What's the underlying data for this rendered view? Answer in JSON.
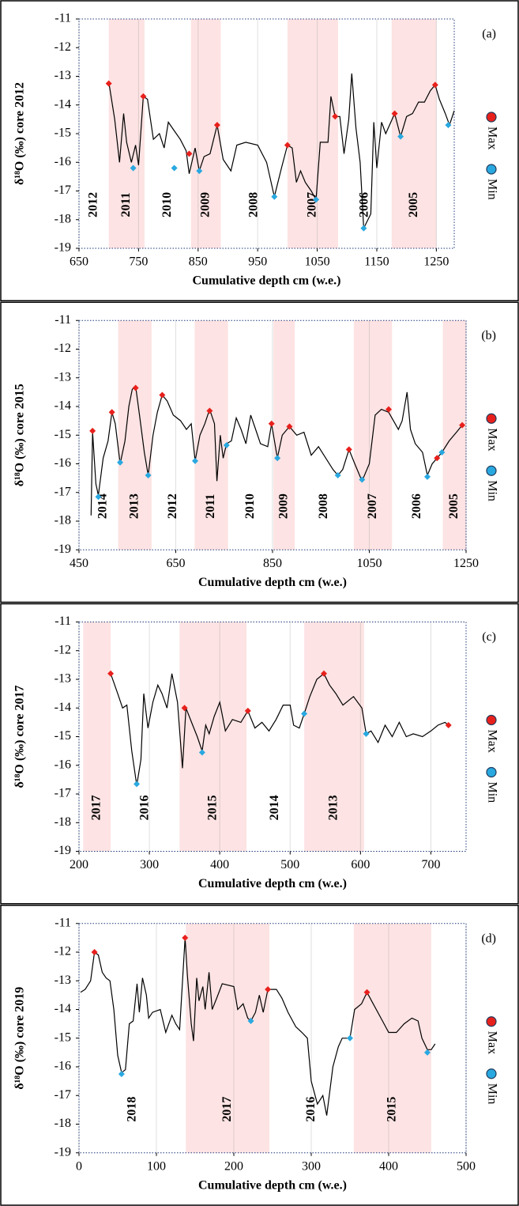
{
  "chart_data": [
    {
      "type": "line",
      "panel_label": "(a)",
      "ylabel": "δ¹⁸O (‰) core 2012",
      "xlabel": "Cumulative depth cm (w.e.)",
      "xlim": [
        650,
        1280
      ],
      "xticks": [
        650,
        750,
        850,
        950,
        1050,
        1150,
        1250
      ],
      "ylim": [
        -19,
        -11
      ],
      "yticks": [
        -19,
        -18,
        -17,
        -16,
        -15,
        -14,
        -13,
        -12,
        -11
      ],
      "x_grid": true,
      "spans": [
        {
          "label": "2012",
          "start": 650,
          "end": 700,
          "shaded": false
        },
        {
          "label": "2011",
          "start": 700,
          "end": 760,
          "shaded": true
        },
        {
          "label": "2010",
          "start": 760,
          "end": 838,
          "shaded": false
        },
        {
          "label": "2009",
          "start": 838,
          "end": 888,
          "shaded": true
        },
        {
          "label": "2008",
          "start": 888,
          "end": 1000,
          "shaded": false
        },
        {
          "label": "2007",
          "start": 1000,
          "end": 1085,
          "shaded": true
        },
        {
          "label": "2006",
          "start": 1085,
          "end": 1175,
          "shaded": false
        },
        {
          "label": "2005",
          "start": 1175,
          "end": 1250,
          "shaded": true
        }
      ],
      "series": [
        {
          "color": "#000000",
          "x": [
            700,
            710,
            718,
            725,
            730,
            738,
            745,
            750,
            758,
            765,
            775,
            785,
            793,
            800,
            810,
            820,
            830,
            835,
            845,
            852,
            860,
            870,
            882,
            892,
            905,
            915,
            930,
            950,
            965,
            978,
            990,
            1000,
            1008,
            1015,
            1022,
            1030,
            1040,
            1048,
            1055,
            1068,
            1073,
            1080,
            1088,
            1095,
            1103,
            1108,
            1115,
            1122,
            1128,
            1140,
            1145,
            1150,
            1158,
            1165,
            1180,
            1190,
            1200,
            1210,
            1220,
            1230,
            1240,
            1248,
            1255,
            1265,
            1272,
            1280
          ],
          "values": [
            -13.2,
            -14.5,
            -16.0,
            -14.3,
            -15.3,
            -16.0,
            -15.4,
            -16.1,
            -13.7,
            -13.8,
            -15.2,
            -15.0,
            -15.5,
            -14.6,
            -14.9,
            -15.2,
            -15.6,
            -16.4,
            -15.5,
            -16.3,
            -15.8,
            -15.7,
            -14.7,
            -15.9,
            -16.3,
            -15.4,
            -15.3,
            -15.4,
            -16.0,
            -17.2,
            -16.2,
            -15.4,
            -15.5,
            -16.7,
            -16.3,
            -16.7,
            -17.0,
            -17.3,
            -15.3,
            -15.3,
            -13.7,
            -14.4,
            -14.4,
            -15.7,
            -14.5,
            -12.9,
            -14.8,
            -16.0,
            -18.3,
            -17.8,
            -14.6,
            -16.2,
            -14.6,
            -15.0,
            -14.3,
            -15.1,
            -14.4,
            -14.3,
            -13.9,
            -13.9,
            -13.5,
            -13.3,
            -13.8,
            -14.3,
            -14.7,
            -14.2
          ]
        },
        {
          "name": "Max",
          "color": "#e8201c",
          "x": [
            700,
            758,
            835,
            882,
            1000,
            1080,
            1180,
            1248
          ],
          "values": [
            -13.25,
            -13.7,
            -15.7,
            -14.7,
            -15.4,
            -14.4,
            -14.3,
            -13.3
          ]
        },
        {
          "name": "Min",
          "color": "#29a8e0",
          "x": [
            741,
            810,
            852,
            978,
            1048,
            1128,
            1190,
            1270
          ],
          "values": [
            -16.2,
            -16.2,
            -16.3,
            -17.2,
            -17.3,
            -18.3,
            -15.1,
            -14.7
          ]
        }
      ]
    },
    {
      "type": "line",
      "panel_label": "(b)",
      "ylabel": "δ¹⁸O (‰) core 2015",
      "xlabel": "Cumulative depth cm (w.e.)",
      "xlim": [
        450,
        1250
      ],
      "xticks": [
        450,
        650,
        850,
        1050,
        1250
      ],
      "ylim": [
        -19,
        -11
      ],
      "yticks": [
        -19,
        -18,
        -17,
        -16,
        -15,
        -14,
        -13,
        -12,
        -11
      ],
      "x_grid": true,
      "spans": [
        {
          "label": "2014",
          "start": 470,
          "end": 531,
          "shaded": false
        },
        {
          "label": "2013",
          "start": 531,
          "end": 600,
          "shaded": true
        },
        {
          "label": "2012",
          "start": 600,
          "end": 689,
          "shaded": false
        },
        {
          "label": "2011",
          "start": 689,
          "end": 758,
          "shaded": true
        },
        {
          "label": "2010",
          "start": 758,
          "end": 852,
          "shaded": false
        },
        {
          "label": "2009",
          "start": 852,
          "end": 896,
          "shaded": true
        },
        {
          "label": "2008",
          "start": 896,
          "end": 1018,
          "shaded": false
        },
        {
          "label": "2007",
          "start": 1018,
          "end": 1097,
          "shaded": true
        },
        {
          "label": "2006",
          "start": 1097,
          "end": 1202,
          "shaded": false
        },
        {
          "label": "2005",
          "start": 1202,
          "end": 1250,
          "shaded": true
        }
      ],
      "series": [
        {
          "color": "#000000",
          "x": [
            475,
            478,
            485,
            490,
            500,
            510,
            518,
            525,
            535,
            545,
            553,
            560,
            567,
            575,
            585,
            593,
            603,
            612,
            622,
            632,
            645,
            660,
            672,
            682,
            690,
            700,
            710,
            720,
            730,
            735,
            742,
            748,
            755,
            765,
            775,
            785,
            795,
            805,
            815,
            825,
            840,
            848,
            860,
            870,
            885,
            900,
            915,
            930,
            945,
            960,
            975,
            985,
            995,
            1008,
            1020,
            1035,
            1050,
            1062,
            1075,
            1090,
            1100,
            1110,
            1118,
            1128,
            1135,
            1145,
            1160,
            1170,
            1180,
            1190,
            1200,
            1215,
            1230,
            1242
          ],
          "values": [
            -17.8,
            -14.9,
            -16.7,
            -17.1,
            -15.8,
            -15.2,
            -14.2,
            -14.6,
            -16.0,
            -15.2,
            -14.0,
            -13.4,
            -13.3,
            -14.3,
            -15.6,
            -16.4,
            -15.0,
            -14.2,
            -13.6,
            -13.8,
            -14.3,
            -14.5,
            -14.8,
            -14.6,
            -15.9,
            -15.0,
            -14.6,
            -14.1,
            -14.6,
            -16.6,
            -15.0,
            -15.8,
            -15.3,
            -15.2,
            -14.4,
            -14.8,
            -15.3,
            -14.3,
            -14.8,
            -15.3,
            -15.4,
            -14.6,
            -15.8,
            -15.0,
            -14.7,
            -15.0,
            -14.9,
            -15.7,
            -15.4,
            -15.8,
            -16.2,
            -16.4,
            -16.2,
            -15.5,
            -16.0,
            -16.6,
            -16.0,
            -14.3,
            -14.1,
            -14.2,
            -14.5,
            -14.8,
            -14.5,
            -13.5,
            -14.8,
            -15.3,
            -15.6,
            -16.4,
            -16.0,
            -15.8,
            -15.6,
            -15.2,
            -14.9,
            -14.65
          ]
        },
        {
          "name": "Max",
          "color": "#e8201c",
          "x": [
            478,
            518,
            567,
            622,
            720,
            848,
            885,
            1008,
            1090,
            1190,
            1242
          ],
          "values": [
            -14.85,
            -14.2,
            -13.35,
            -13.6,
            -14.15,
            -14.6,
            -14.7,
            -15.5,
            -14.1,
            -15.8,
            -14.65
          ]
        },
        {
          "name": "Min",
          "color": "#29a8e0",
          "x": [
            490,
            535,
            593,
            690,
            755,
            860,
            985,
            1035,
            1170,
            1200
          ],
          "values": [
            -17.15,
            -15.95,
            -16.4,
            -15.9,
            -15.35,
            -15.8,
            -16.4,
            -16.55,
            -16.45,
            -15.6
          ]
        }
      ]
    },
    {
      "type": "line",
      "panel_label": "(c)",
      "ylabel": "δ¹⁸O (‰) core 2017",
      "xlabel": "Cumulative depth cm (w.e.)",
      "xlim": [
        200,
        750
      ],
      "xticks": [
        200,
        300,
        400,
        500,
        600,
        700
      ],
      "ylim": [
        -19,
        -11
      ],
      "yticks": [
        -19,
        -18,
        -17,
        -16,
        -15,
        -14,
        -13,
        -12,
        -11
      ],
      "x_grid": true,
      "spans": [
        {
          "label": "2017",
          "start": 206,
          "end": 245,
          "shaded": true
        },
        {
          "label": "2016",
          "start": 245,
          "end": 343,
          "shaded": false
        },
        {
          "label": "2015",
          "start": 343,
          "end": 438,
          "shaded": true
        },
        {
          "label": "2014",
          "start": 438,
          "end": 520,
          "shaded": false
        },
        {
          "label": "2013",
          "start": 520,
          "end": 605,
          "shaded": true
        }
      ],
      "series": [
        {
          "color": "#000000",
          "x": [
            245,
            255,
            262,
            268,
            275,
            282,
            288,
            292,
            298,
            305,
            312,
            318,
            325,
            332,
            340,
            347,
            352,
            360,
            368,
            375,
            380,
            385,
            392,
            400,
            408,
            418,
            430,
            440,
            450,
            460,
            470,
            480,
            490,
            500,
            505,
            513,
            520,
            528,
            538,
            548,
            556,
            565,
            575,
            590,
            602,
            608,
            615,
            625,
            635,
            645,
            655,
            665,
            675,
            688,
            700,
            710,
            720,
            725
          ],
          "values": [
            -12.8,
            -13.5,
            -14.0,
            -13.9,
            -15.5,
            -16.7,
            -15.8,
            -13.5,
            -14.7,
            -13.8,
            -13.2,
            -13.5,
            -14.0,
            -12.8,
            -13.8,
            -16.1,
            -14.0,
            -14.5,
            -15.0,
            -15.5,
            -14.6,
            -14.9,
            -14.3,
            -13.8,
            -14.8,
            -14.4,
            -14.5,
            -14.1,
            -14.7,
            -14.5,
            -14.8,
            -14.4,
            -13.9,
            -13.9,
            -14.6,
            -14.7,
            -14.2,
            -13.6,
            -13.0,
            -12.8,
            -13.2,
            -13.5,
            -13.9,
            -13.6,
            -14.0,
            -14.9,
            -14.8,
            -15.2,
            -14.6,
            -15.0,
            -14.5,
            -15.0,
            -14.9,
            -15.0,
            -14.8,
            -14.6,
            -14.5,
            -14.6
          ]
        },
        {
          "name": "Max",
          "color": "#e8201c",
          "x": [
            245,
            350,
            440,
            548,
            725
          ],
          "values": [
            -12.8,
            -14.0,
            -14.1,
            -12.8,
            -14.6
          ]
        },
        {
          "name": "Min",
          "color": "#29a8e0",
          "x": [
            282,
            375,
            520,
            608
          ],
          "values": [
            -16.65,
            -15.55,
            -14.2,
            -14.9
          ]
        }
      ]
    },
    {
      "type": "line",
      "panel_label": "(d)",
      "ylabel": "δ¹⁸O (‰) core 2019",
      "xlabel": "Cumulative depth cm (w.e.)",
      "xlim": [
        0,
        500
      ],
      "xticks": [
        0,
        100,
        200,
        300,
        400,
        500
      ],
      "ylim": [
        -19,
        -11
      ],
      "yticks": [
        -19,
        -18,
        -17,
        -16,
        -15,
        -14,
        -13,
        -12,
        -11
      ],
      "x_grid": true,
      "spans": [
        {
          "label": "2018",
          "start": 0,
          "end": 138,
          "shaded": false
        },
        {
          "label": "2017",
          "start": 138,
          "end": 246,
          "shaded": true
        },
        {
          "label": "2016",
          "start": 246,
          "end": 355,
          "shaded": false
        },
        {
          "label": "2015",
          "start": 355,
          "end": 455,
          "shaded": true
        }
      ],
      "series": [
        {
          "color": "#000000",
          "x": [
            2,
            8,
            15,
            20,
            25,
            30,
            35,
            40,
            45,
            50,
            55,
            60,
            65,
            70,
            75,
            78,
            82,
            87,
            90,
            95,
            105,
            112,
            120,
            125,
            130,
            137,
            140,
            145,
            148,
            152,
            155,
            160,
            163,
            168,
            172,
            178,
            185,
            200,
            205,
            212,
            218,
            222,
            228,
            233,
            238,
            244,
            255,
            262,
            270,
            280,
            288,
            295,
            300,
            308,
            315,
            320,
            328,
            335,
            340,
            350,
            356,
            365,
            372,
            380,
            392,
            400,
            410,
            420,
            430,
            438,
            443,
            450,
            455,
            460
          ],
          "values": [
            -13.4,
            -13.3,
            -13.0,
            -12.0,
            -12.1,
            -12.7,
            -12.9,
            -13.0,
            -14.0,
            -15.6,
            -16.2,
            -16.1,
            -14.5,
            -14.4,
            -13.1,
            -14.1,
            -12.9,
            -13.5,
            -14.3,
            -14.1,
            -14.0,
            -14.8,
            -14.2,
            -14.5,
            -14.7,
            -11.5,
            -12.8,
            -14.5,
            -15.1,
            -12.9,
            -13.7,
            -13.2,
            -14.0,
            -12.7,
            -14.0,
            -13.6,
            -13.1,
            -13.2,
            -14.0,
            -13.8,
            -14.3,
            -14.4,
            -14.1,
            -13.5,
            -14.1,
            -13.3,
            -13.3,
            -13.6,
            -14.1,
            -14.6,
            -14.8,
            -15.0,
            -16.5,
            -17.3,
            -17.0,
            -17.7,
            -16.0,
            -15.3,
            -15.0,
            -15.0,
            -14.0,
            -13.8,
            -13.4,
            -13.8,
            -14.4,
            -14.8,
            -14.8,
            -14.5,
            -14.3,
            -14.4,
            -15.0,
            -15.4,
            -15.4,
            -15.2
          ]
        },
        {
          "name": "Max",
          "color": "#e8201c",
          "x": [
            20,
            137,
            244,
            372
          ],
          "values": [
            -12.0,
            -11.5,
            -13.3,
            -13.4
          ]
        },
        {
          "name": "Min",
          "color": "#29a8e0",
          "x": [
            55,
            222,
            350,
            450
          ],
          "values": [
            -16.25,
            -14.4,
            -15.0,
            -15.5
          ]
        }
      ]
    }
  ]
}
